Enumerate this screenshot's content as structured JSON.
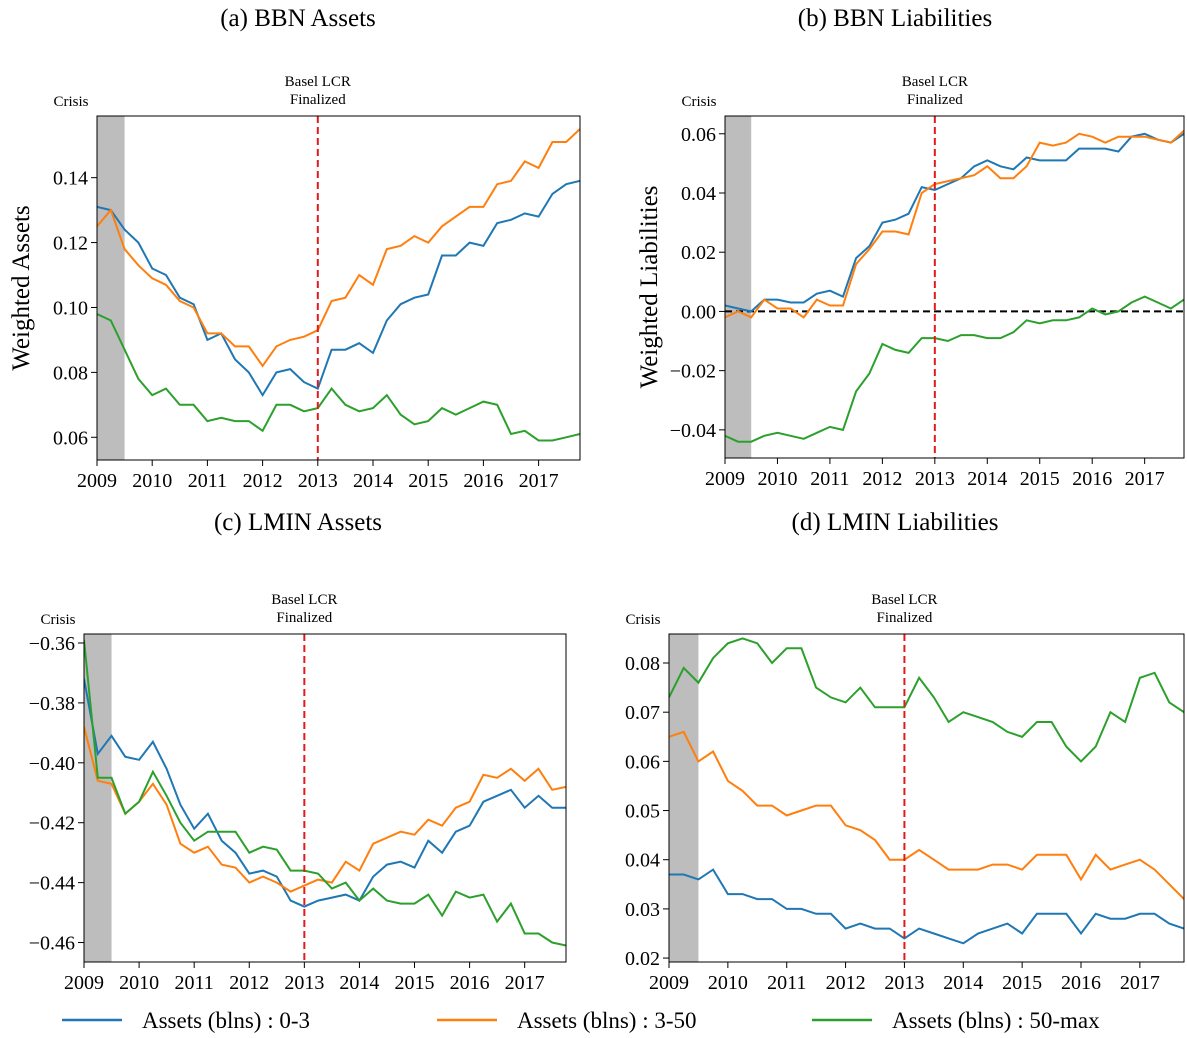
{
  "legend": {
    "names": [
      "Assets (blns) : 0-3",
      "Assets (blns) : 3-50",
      "Assets (blns) : 50-max"
    ]
  },
  "chart_data": [
    {
      "type": "line",
      "title": "(a) BBN Assets",
      "y_label": "Weighted Assets",
      "crisis_label": "Crisis",
      "event_label": [
        "Basel LCR",
        "Finalized"
      ],
      "shade_x": [
        2009,
        2009.5
      ],
      "vline_x": 2013,
      "x": [
        2009,
        2009.25,
        2009.5,
        2009.75,
        2010,
        2010.25,
        2010.5,
        2010.75,
        2011,
        2011.25,
        2011.5,
        2011.75,
        2012,
        2012.25,
        2012.5,
        2012.75,
        2013,
        2013.25,
        2013.5,
        2013.75,
        2014,
        2014.25,
        2014.5,
        2014.75,
        2015,
        2015.25,
        2015.5,
        2015.75,
        2016,
        2016.25,
        2016.5,
        2016.75,
        2017,
        2017.25,
        2017.5,
        2017.75
      ],
      "xlim": [
        2009,
        2017.75
      ],
      "xticks": [
        2009,
        2010,
        2011,
        2012,
        2013,
        2014,
        2015,
        2016,
        2017
      ],
      "ylim": [
        0.053,
        0.159
      ],
      "yticks": [
        0.06,
        0.08,
        {
          "value": 0.1,
          "label": "0.10"
        },
        0.12,
        0.14
      ],
      "series": [
        {
          "color": "#1f77b4",
          "values": [
            0.131,
            0.13,
            0.124,
            0.12,
            0.112,
            0.11,
            0.103,
            0.101,
            0.09,
            0.092,
            0.084,
            0.08,
            0.073,
            0.08,
            0.081,
            0.077,
            0.075,
            0.087,
            0.087,
            0.089,
            0.086,
            0.096,
            0.101,
            0.103,
            0.104,
            0.116,
            0.116,
            0.12,
            0.119,
            0.126,
            0.127,
            0.129,
            0.128,
            0.135,
            0.138,
            0.139
          ]
        },
        {
          "color": "#ff7f0e",
          "values": [
            0.125,
            0.13,
            0.118,
            0.113,
            0.109,
            0.107,
            0.102,
            0.1,
            0.092,
            0.092,
            0.088,
            0.088,
            0.082,
            0.088,
            0.09,
            0.091,
            0.093,
            0.102,
            0.103,
            0.11,
            0.107,
            0.118,
            0.119,
            0.122,
            0.12,
            0.125,
            0.128,
            0.131,
            0.131,
            0.138,
            0.139,
            0.145,
            0.143,
            0.151,
            0.151,
            0.155
          ]
        },
        {
          "color": "#2ca02c",
          "values": [
            0.098,
            0.096,
            0.087,
            0.078,
            0.073,
            0.075,
            0.07,
            0.07,
            0.065,
            0.066,
            0.065,
            0.065,
            0.062,
            0.07,
            0.07,
            0.068,
            0.069,
            0.075,
            0.07,
            0.068,
            0.069,
            0.073,
            0.067,
            0.064,
            0.065,
            0.069,
            0.067,
            0.069,
            0.071,
            0.07,
            0.061,
            0.062,
            0.059,
            0.059,
            0.06,
            0.061
          ]
        }
      ]
    },
    {
      "type": "line",
      "title": "(b) BBN Liabilities",
      "y_label": "Weighted Liabilities",
      "crisis_label": "Crisis",
      "event_label": [
        "Basel LCR",
        "Finalized"
      ],
      "shade_x": [
        2009,
        2009.5
      ],
      "vline_x": 2013,
      "hline_y": 0,
      "x": [
        2009,
        2009.25,
        2009.5,
        2009.75,
        2010,
        2010.25,
        2010.5,
        2010.75,
        2011,
        2011.25,
        2011.5,
        2011.75,
        2012,
        2012.25,
        2012.5,
        2012.75,
        2013,
        2013.25,
        2013.5,
        2013.75,
        2014,
        2014.25,
        2014.5,
        2014.75,
        2015,
        2015.25,
        2015.5,
        2015.75,
        2016,
        2016.25,
        2016.5,
        2016.75,
        2017,
        2017.25,
        2017.5,
        2017.75
      ],
      "xlim": [
        2009,
        2017.75
      ],
      "xticks": [
        2009,
        2010,
        2011,
        2012,
        2013,
        2014,
        2015,
        2016,
        2017
      ],
      "ylim": [
        -0.0495,
        0.066
      ],
      "yticks": [
        {
          "value": -0.04,
          "label": "−0.04"
        },
        {
          "value": -0.02,
          "label": "−0.02"
        },
        {
          "value": 0,
          "label": "0.00"
        },
        0.02,
        0.04,
        0.06
      ],
      "series": [
        {
          "color": "#1f77b4",
          "values": [
            0.002,
            0.001,
            0.0,
            0.004,
            0.004,
            0.003,
            0.003,
            0.006,
            0.007,
            0.005,
            0.018,
            0.022,
            0.03,
            0.031,
            0.033,
            0.042,
            0.041,
            0.043,
            0.045,
            0.049,
            0.051,
            0.049,
            0.048,
            0.052,
            0.051,
            0.051,
            0.051,
            0.055,
            0.055,
            0.055,
            0.054,
            0.059,
            0.06,
            0.058,
            0.057,
            0.06
          ]
        },
        {
          "color": "#ff7f0e",
          "values": [
            -0.002,
            0.0,
            -0.002,
            0.004,
            0.001,
            0.001,
            -0.002,
            0.004,
            0.002,
            0.002,
            0.016,
            0.021,
            0.027,
            0.027,
            0.026,
            0.04,
            0.043,
            0.044,
            0.045,
            0.046,
            0.049,
            0.045,
            0.045,
            0.049,
            0.057,
            0.056,
            0.057,
            0.06,
            0.059,
            0.057,
            0.059,
            0.059,
            0.059,
            0.058,
            0.057,
            0.061
          ]
        },
        {
          "color": "#2ca02c",
          "values": [
            -0.042,
            -0.044,
            -0.044,
            -0.042,
            -0.041,
            -0.042,
            -0.043,
            -0.041,
            -0.039,
            -0.04,
            -0.027,
            -0.021,
            -0.011,
            -0.013,
            -0.014,
            -0.009,
            -0.009,
            -0.01,
            -0.008,
            -0.008,
            -0.009,
            -0.009,
            -0.007,
            -0.003,
            -0.004,
            -0.003,
            -0.003,
            -0.002,
            0.001,
            -0.001,
            0.0,
            0.003,
            0.005,
            0.003,
            0.001,
            0.004
          ]
        }
      ]
    },
    {
      "type": "line",
      "title": "(c) LMIN Assets",
      "crisis_label": "Crisis",
      "event_label": [
        "Basel LCR",
        "Finalized"
      ],
      "shade_x": [
        2009,
        2009.5
      ],
      "vline_x": 2013,
      "x": [
        2009,
        2009.25,
        2009.5,
        2009.75,
        2010,
        2010.25,
        2010.5,
        2010.75,
        2011,
        2011.25,
        2011.5,
        2011.75,
        2012,
        2012.25,
        2012.5,
        2012.75,
        2013,
        2013.25,
        2013.5,
        2013.75,
        2014,
        2014.25,
        2014.5,
        2014.75,
        2015,
        2015.25,
        2015.5,
        2015.75,
        2016,
        2016.25,
        2016.5,
        2016.75,
        2017,
        2017.25,
        2017.5,
        2017.75
      ],
      "xlim": [
        2009,
        2017.75
      ],
      "xticks": [
        2009,
        2010,
        2011,
        2012,
        2013,
        2014,
        2015,
        2016,
        2017
      ],
      "ylim": [
        -0.4665,
        -0.357
      ],
      "yticks": [
        {
          "value": -0.46,
          "label": "−0.46"
        },
        {
          "value": -0.44,
          "label": "−0.44"
        },
        {
          "value": -0.42,
          "label": "−0.42"
        },
        {
          "value": -0.4,
          "label": "−0.40"
        },
        {
          "value": -0.38,
          "label": "−0.38"
        },
        {
          "value": -0.36,
          "label": "−0.36"
        }
      ],
      "series": [
        {
          "color": "#1f77b4",
          "values": [
            -0.372,
            -0.397,
            -0.391,
            -0.398,
            -0.399,
            -0.393,
            -0.402,
            -0.414,
            -0.422,
            -0.417,
            -0.426,
            -0.43,
            -0.437,
            -0.436,
            -0.438,
            -0.446,
            -0.448,
            -0.446,
            -0.445,
            -0.444,
            -0.446,
            -0.438,
            -0.434,
            -0.433,
            -0.435,
            -0.426,
            -0.43,
            -0.423,
            -0.421,
            -0.413,
            -0.411,
            -0.409,
            -0.415,
            -0.411,
            -0.415,
            -0.415
          ]
        },
        {
          "color": "#ff7f0e",
          "values": [
            -0.388,
            -0.406,
            -0.407,
            -0.417,
            -0.413,
            -0.407,
            -0.414,
            -0.427,
            -0.43,
            -0.428,
            -0.434,
            -0.435,
            -0.44,
            -0.438,
            -0.44,
            -0.443,
            -0.441,
            -0.439,
            -0.44,
            -0.433,
            -0.436,
            -0.427,
            -0.425,
            -0.423,
            -0.424,
            -0.419,
            -0.421,
            -0.415,
            -0.413,
            -0.404,
            -0.405,
            -0.402,
            -0.406,
            -0.402,
            -0.409,
            -0.408
          ]
        },
        {
          "color": "#2ca02c",
          "values": [
            -0.359,
            -0.405,
            -0.405,
            -0.417,
            -0.413,
            -0.403,
            -0.411,
            -0.42,
            -0.426,
            -0.423,
            -0.423,
            -0.423,
            -0.43,
            -0.428,
            -0.429,
            -0.436,
            -0.436,
            -0.437,
            -0.442,
            -0.44,
            -0.446,
            -0.442,
            -0.446,
            -0.447,
            -0.447,
            -0.444,
            -0.451,
            -0.443,
            -0.445,
            -0.444,
            -0.453,
            -0.447,
            -0.457,
            -0.457,
            -0.46,
            -0.461
          ]
        }
      ]
    },
    {
      "type": "line",
      "title": "(d) LMIN Liabilities",
      "crisis_label": "Crisis",
      "event_label": [
        "Basel LCR",
        "Finalized"
      ],
      "shade_x": [
        2009,
        2009.5
      ],
      "vline_x": 2013,
      "x": [
        2009,
        2009.25,
        2009.5,
        2009.75,
        2010,
        2010.25,
        2010.5,
        2010.75,
        2011,
        2011.25,
        2011.5,
        2011.75,
        2012,
        2012.25,
        2012.5,
        2012.75,
        2013,
        2013.25,
        2013.5,
        2013.75,
        2014,
        2014.25,
        2014.5,
        2014.75,
        2015,
        2015.25,
        2015.5,
        2015.75,
        2016,
        2016.25,
        2016.5,
        2016.75,
        2017,
        2017.25,
        2017.5,
        2017.75
      ],
      "xlim": [
        2009,
        2017.75
      ],
      "xticks": [
        2009,
        2010,
        2011,
        2012,
        2013,
        2014,
        2015,
        2016,
        2017
      ],
      "ylim": [
        0.0192,
        0.0859
      ],
      "yticks": [
        0.02,
        0.03,
        0.04,
        0.05,
        0.06,
        0.07,
        0.08
      ],
      "series": [
        {
          "color": "#1f77b4",
          "values": [
            0.037,
            0.037,
            0.036,
            0.038,
            0.033,
            0.033,
            0.032,
            0.032,
            0.03,
            0.03,
            0.029,
            0.029,
            0.026,
            0.027,
            0.026,
            0.026,
            0.024,
            0.026,
            0.025,
            0.024,
            0.023,
            0.025,
            0.026,
            0.027,
            0.025,
            0.029,
            0.029,
            0.029,
            0.025,
            0.029,
            0.028,
            0.028,
            0.029,
            0.029,
            0.027,
            0.026
          ]
        },
        {
          "color": "#ff7f0e",
          "values": [
            0.065,
            0.066,
            0.06,
            0.062,
            0.056,
            0.054,
            0.051,
            0.051,
            0.049,
            0.05,
            0.051,
            0.051,
            0.047,
            0.046,
            0.044,
            0.04,
            0.04,
            0.042,
            0.04,
            0.038,
            0.038,
            0.038,
            0.039,
            0.039,
            0.038,
            0.041,
            0.041,
            0.041,
            0.036,
            0.041,
            0.038,
            0.039,
            0.04,
            0.038,
            0.035,
            0.032
          ]
        },
        {
          "color": "#2ca02c",
          "values": [
            0.073,
            0.079,
            0.076,
            0.081,
            0.084,
            0.085,
            0.084,
            0.08,
            0.083,
            0.083,
            0.075,
            0.073,
            0.072,
            0.075,
            0.071,
            0.071,
            0.071,
            0.077,
            0.073,
            0.068,
            0.07,
            0.069,
            0.068,
            0.066,
            0.065,
            0.068,
            0.068,
            0.063,
            0.06,
            0.063,
            0.07,
            0.068,
            0.077,
            0.078,
            0.072,
            0.07
          ]
        }
      ]
    }
  ]
}
